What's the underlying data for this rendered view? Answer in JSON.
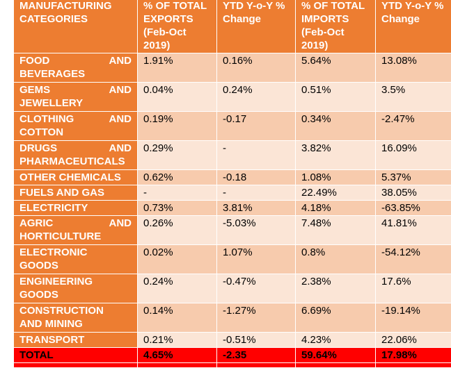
{
  "headers": {
    "category": "MANUFACTURING CATEGORIES",
    "exports": "% OF TOTAL EXPORTS (Feb-Oct 2019)",
    "exports_change": "YTD Y-o-Y % Change",
    "imports": "% OF TOTAL IMPORTS (Feb-Oct 2019)",
    "imports_change": "YTD Y-o-Y % Change"
  },
  "rows": [
    {
      "category_a": "FOOD",
      "category_b": "AND",
      "category_c": "BEVERAGES",
      "exports": "1.91%",
      "exports_change": "0.16%",
      "imports": "5.64%",
      "imports_change": "13.08%"
    },
    {
      "category_a": "GEMS",
      "category_b": "AND",
      "category_c": "JEWELLERY",
      "exports": "0.04%",
      "exports_change": "0.24%",
      "imports": "0.51%",
      "imports_change": "3.5%"
    },
    {
      "category_a": "CLOTHING",
      "category_b": "AND",
      "category_c": "COTTON",
      "exports": "0.19%",
      "exports_change": "-0.17",
      "imports": "0.34%",
      "imports_change": "-2.47%"
    },
    {
      "category_a": "DRUGS",
      "category_b": "AND",
      "category_c": "PHARMACEUTICALS",
      "exports": "0.29%",
      "exports_change": "-",
      "imports": "3.82%",
      "imports_change": "16.09%"
    },
    {
      "category_a": "OTHER CHEMICALS",
      "category_b": "",
      "category_c": "",
      "exports": "0.62%",
      "exports_change": "-0.18",
      "imports": "1.08%",
      "imports_change": "5.37%"
    },
    {
      "category_a": "FUELS AND GAS",
      "category_b": "",
      "category_c": "",
      "exports": "-",
      "exports_change": "-",
      "imports": "22.49%",
      "imports_change": "38.05%"
    },
    {
      "category_a": "ELECTRICITY",
      "category_b": "",
      "category_c": "",
      "exports": "0.73%",
      "exports_change": "3.81%",
      "imports": "4.18%",
      "imports_change": "-63.85%"
    },
    {
      "category_a": "AGRIC",
      "category_b": "AND",
      "category_c": "HORTICULTURE",
      "exports": "0.26%",
      "exports_change": "-5.03%",
      "imports": "7.48%",
      "imports_change": "41.81%"
    },
    {
      "category_a": "ELECTRONIC",
      "category_b": "",
      "category_c": "GOODS",
      "exports": "0.02%",
      "exports_change": "1.07%",
      "imports": "0.8%",
      "imports_change": "-54.12%"
    },
    {
      "category_a": "ENGINEERING",
      "category_b": "",
      "category_c": "GOODS",
      "exports": "0.24%",
      "exports_change": "-0.47%",
      "imports": "2.38%",
      "imports_change": "17.6%"
    },
    {
      "category_a": "CONSTRUCTION",
      "category_b": "",
      "category_c": "AND MINING",
      "exports": "0.14%",
      "exports_change": "-1.27%",
      "imports": "6.69%",
      "imports_change": "-19.14%"
    },
    {
      "category_a": "TRANSPORT",
      "category_b": "",
      "category_c": "",
      "exports": "0.21%",
      "exports_change": "-0.51%",
      "imports": "4.23%",
      "imports_change": "22.06%"
    }
  ],
  "total": {
    "category": "TOTAL",
    "exports": "4.65%",
    "exports_change": "-2.35",
    "imports": "59.64%",
    "imports_change": "17.98%"
  }
}
